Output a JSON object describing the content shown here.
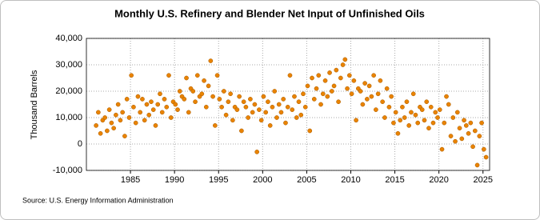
{
  "chart_data": {
    "type": "scatter",
    "title": "Monthly U.S. Refinery and Blender Net Input of Unfinished Oils",
    "y_label": "Thousand Barrels",
    "source": "Source: U.S. Energy Information Administration",
    "color": "#e98300",
    "grid": true,
    "xlim": [
      1980,
      2025.75
    ],
    "xticks": [
      1985,
      1990,
      1995,
      2000,
      2005,
      2010,
      2015,
      2020,
      2025
    ],
    "ylim": [
      -10000,
      40000
    ],
    "yticks": [
      {
        "value": -10000,
        "label": "-10,000"
      },
      0,
      {
        "value": 10000,
        "label": "10,000"
      },
      {
        "value": 20000,
        "label": "20,000"
      },
      {
        "value": 30000,
        "label": "30,000"
      },
      {
        "value": 40000,
        "label": "40,000"
      }
    ],
    "x": [
      1981.1,
      1981.35,
      1981.6,
      1981.85,
      1982.1,
      1982.35,
      1982.6,
      1982.85,
      1983.1,
      1983.35,
      1983.6,
      1983.85,
      1984.1,
      1984.35,
      1984.6,
      1984.85,
      1985.1,
      1985.35,
      1985.6,
      1985.85,
      1986.1,
      1986.35,
      1986.6,
      1986.85,
      1987.1,
      1987.35,
      1987.6,
      1987.85,
      1988.1,
      1988.35,
      1988.6,
      1988.85,
      1989.1,
      1989.35,
      1989.6,
      1989.85,
      1990.1,
      1990.35,
      1990.6,
      1990.85,
      1991.1,
      1991.35,
      1991.6,
      1991.85,
      1992.1,
      1992.35,
      1992.6,
      1992.85,
      1993.1,
      1993.35,
      1993.6,
      1993.85,
      1994.1,
      1994.35,
      1994.6,
      1994.85,
      1995.1,
      1995.35,
      1995.6,
      1995.85,
      1996.1,
      1996.35,
      1996.6,
      1996.85,
      1997.1,
      1997.35,
      1997.6,
      1997.85,
      1998.1,
      1998.35,
      1998.6,
      1998.85,
      1999.1,
      1999.35,
      1999.6,
      1999.85,
      2000.1,
      2000.35,
      2000.6,
      2000.85,
      2001.1,
      2001.35,
      2001.6,
      2001.85,
      2002.1,
      2002.35,
      2002.6,
      2002.85,
      2003.1,
      2003.35,
      2003.6,
      2003.85,
      2004.1,
      2004.35,
      2004.6,
      2004.85,
      2005.1,
      2005.35,
      2005.6,
      2005.85,
      2006.1,
      2006.35,
      2006.6,
      2006.85,
      2007.1,
      2007.35,
      2007.6,
      2007.85,
      2008.1,
      2008.35,
      2008.6,
      2008.85,
      2009.1,
      2009.35,
      2009.6,
      2009.85,
      2010.1,
      2010.35,
      2010.6,
      2010.85,
      2011.1,
      2011.35,
      2011.6,
      2011.85,
      2012.1,
      2012.35,
      2012.6,
      2012.85,
      2013.1,
      2013.35,
      2013.6,
      2013.85,
      2014.1,
      2014.35,
      2014.6,
      2014.85,
      2015.1,
      2015.35,
      2015.6,
      2015.85,
      2016.1,
      2016.35,
      2016.6,
      2016.85,
      2017.1,
      2017.35,
      2017.6,
      2017.85,
      2018.1,
      2018.35,
      2018.6,
      2018.85,
      2019.1,
      2019.35,
      2019.6,
      2019.85,
      2020.1,
      2020.35,
      2020.6,
      2020.85,
      2021.1,
      2021.35,
      2021.6,
      2021.85,
      2022.1,
      2022.35,
      2022.6,
      2022.85,
      2023.1,
      2023.35,
      2023.6,
      2023.85,
      2024.1,
      2024.35,
      2024.6,
      2024.85,
      2025.1,
      2025.35
    ],
    "values": [
      7000,
      12000,
      4000,
      9000,
      10000,
      5000,
      13000,
      8000,
      6000,
      11000,
      15000,
      9000,
      12000,
      3000,
      17000,
      10000,
      26000,
      14000,
      8000,
      18000,
      12000,
      17000,
      9000,
      15000,
      11000,
      16000,
      13000,
      7000,
      15000,
      19000,
      12000,
      17000,
      14000,
      26000,
      10000,
      16000,
      15000,
      13000,
      20000,
      18000,
      17000,
      25000,
      12000,
      21000,
      20000,
      16000,
      26000,
      18000,
      19000,
      24000,
      14000,
      22000,
      31500,
      18000,
      7000,
      26000,
      17000,
      14000,
      20000,
      11000,
      16000,
      19000,
      9000,
      14000,
      13000,
      18000,
      5000,
      16000,
      14000,
      10000,
      17000,
      12000,
      15000,
      -3000,
      13000,
      9000,
      18000,
      12000,
      16000,
      7000,
      14000,
      20000,
      10000,
      15000,
      12000,
      17000,
      8000,
      14000,
      26000,
      13000,
      18000,
      10000,
      16000,
      11000,
      19000,
      14000,
      22000,
      5000,
      25000,
      17000,
      21000,
      26000,
      15000,
      19000,
      24000,
      18000,
      27000,
      20000,
      22000,
      28000,
      16000,
      25000,
      30000,
      32000,
      21000,
      26000,
      19000,
      24000,
      9000,
      21000,
      20000,
      15000,
      23000,
      17000,
      22000,
      18000,
      26000,
      13000,
      19000,
      24000,
      16000,
      10000,
      21000,
      14000,
      18000,
      8000,
      12000,
      4000,
      9000,
      14000,
      10000,
      16000,
      7000,
      12000,
      19000,
      11000,
      8000,
      14000,
      13000,
      9000,
      16000,
      6000,
      14000,
      8000,
      12000,
      10000,
      13000,
      -2000,
      8000,
      18000,
      15000,
      3000,
      10000,
      1000,
      12000,
      6000,
      2000,
      9000,
      7000,
      4000,
      8000,
      -1000,
      5000,
      -8000,
      3000,
      8000,
      -2000,
      -5000
    ]
  }
}
